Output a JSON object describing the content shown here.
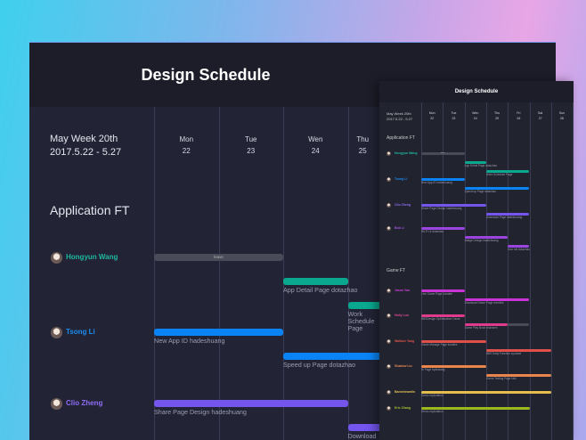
{
  "title": "Design Schedule",
  "week": {
    "line1": "May Week 20th",
    "line2": "2017.5.22 - 5.27",
    "line2_small": "2017.5.22 - 5.27"
  },
  "days": [
    {
      "name": "Mon",
      "num": "22"
    },
    {
      "name": "Tue",
      "num": "23"
    },
    {
      "name": "Wen",
      "num": "24"
    },
    {
      "name": "Thu",
      "num": "25"
    },
    {
      "name": "Fri",
      "num": "26"
    },
    {
      "name": "Sat",
      "num": "27"
    },
    {
      "name": "Sun",
      "num": "28"
    }
  ],
  "groups": [
    {
      "name": "Application FT"
    },
    {
      "name": "Game FT"
    }
  ],
  "people": [
    {
      "name": "Hongyun Wang",
      "color": "#1fb8a0",
      "group": 0,
      "tasks": [
        {
          "title": "leave",
          "start": 0,
          "end": 2,
          "color": "#4a4b58",
          "inline": true
        },
        {
          "title": "App Detail Page",
          "owner": "dotazhao",
          "start": 2,
          "end": 3,
          "color": "#0aa88e"
        },
        {
          "title": "Work Schedule Page",
          "owner": "",
          "start": 3,
          "end": 5,
          "color": "#0aa88e"
        }
      ]
    },
    {
      "name": "Tsong Li",
      "color": "#1a8cf0",
      "group": 0,
      "tasks": [
        {
          "title": "New App ID",
          "owner": "hadeshuang",
          "start": 0,
          "end": 2,
          "color": "#0a84f5"
        },
        {
          "title": "Speed up Page",
          "owner": "dotazhao",
          "start": 2,
          "end": 5,
          "color": "#0a84f5"
        }
      ]
    },
    {
      "name": "Clio Zheng",
      "color": "#8e6cf5",
      "group": 0,
      "tasks": [
        {
          "title": "Share Page Design",
          "owner": "hadeshuang",
          "start": 0,
          "end": 3,
          "color": "#7455ee"
        },
        {
          "title": "Download Page",
          "owner": "hadeshuang",
          "start": 3,
          "end": 5,
          "color": "#7455ee"
        }
      ]
    },
    {
      "name": "Bob Li",
      "color": "#a156e8",
      "group": 0,
      "tasks": [
        {
          "title": "Wi-Fi UI",
          "owner": "dotazhao",
          "start": 0,
          "end": 2,
          "color": "#9a45e0"
        },
        {
          "title": "Badge Design",
          "owner": "hadeshuang",
          "start": 2,
          "end": 4,
          "color": "#9a45e0"
        },
        {
          "title": "Icon set",
          "owner": "dotazhao",
          "start": 4,
          "end": 5,
          "color": "#9a45e0"
        }
      ]
    },
    {
      "name": "Jason Yao",
      "color": "#d040d8",
      "group": 1,
      "tasks": [
        {
          "title": "Live Game Page",
          "owner": "luizalee",
          "start": 0,
          "end": 2,
          "color": "#cc33d6"
        },
        {
          "title": "Download Game Page",
          "owner": "chenlink",
          "start": 2,
          "end": 5,
          "color": "#cc33d6"
        }
      ]
    },
    {
      "name": "Holly Luo",
      "color": "#e04a9a",
      "group": 1,
      "tasks": [
        {
          "title": "BBSDesign Optimization",
          "owner": "Oscar",
          "start": 0,
          "end": 2,
          "color": "#e03a8c"
        },
        {
          "title": "Game Play Book",
          "owner": "chaowen",
          "start": 2,
          "end": 4,
          "color": "#e03a8c"
        },
        {
          "title": "",
          "start": 4,
          "end": 5,
          "color": "#4a4b58",
          "inline": true
        }
      ]
    },
    {
      "name": "Wallace Yang",
      "color": "#e0554a",
      "group": 1,
      "tasks": [
        {
          "title": "Game Manage Page",
          "owner": "luizalee",
          "start": 0,
          "end": 3,
          "color": "#e0504a"
        },
        {
          "title": "BBS Daily Function",
          "owner": "zyunwei",
          "start": 3,
          "end": 6,
          "color": "#e0504a"
        }
      ]
    },
    {
      "name": "Shadow Liu",
      "color": "#e88a55",
      "group": 1,
      "tasks": [
        {
          "title": "Hi Page",
          "owner": "hydewang",
          "start": 0,
          "end": 3,
          "color": "#e8854d"
        },
        {
          "title": "Game Testing Page",
          "owner": "Neil",
          "start": 3,
          "end": 6,
          "color": "#e8854d"
        }
      ]
    },
    {
      "name": "Banedreamlin",
      "color": "#e0c055",
      "group": 1,
      "tasks": [
        {
          "title": "Demo exploration",
          "owner": "",
          "start": 0,
          "end": 6,
          "color": "#e3bd4e"
        }
      ]
    },
    {
      "name": "Eric Zhang",
      "color": "#a8c030",
      "group": 1,
      "tasks": [
        {
          "title": "Demo exploration",
          "owner": "",
          "start": 0,
          "end": 5,
          "color": "#9cb81e"
        }
      ]
    }
  ]
}
